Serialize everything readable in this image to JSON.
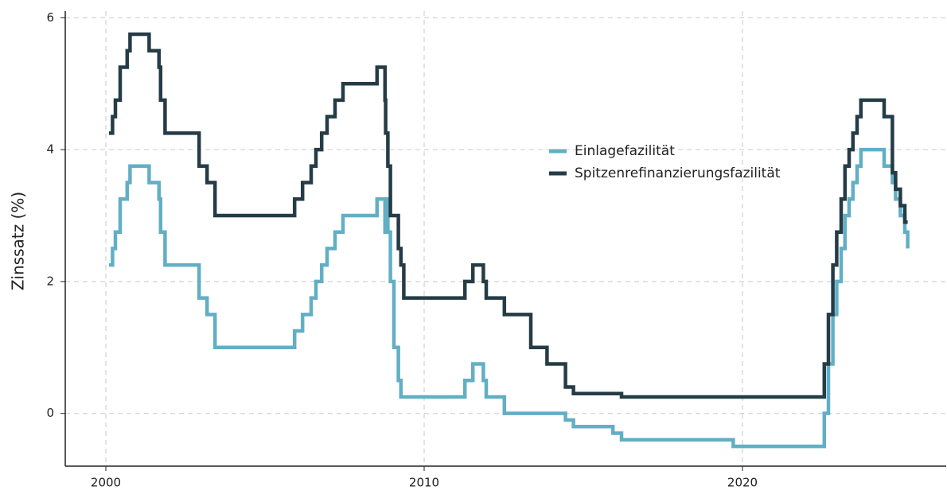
{
  "chart_data": {
    "type": "line",
    "step": true,
    "ylabel": "Zinssatz (%)",
    "x": [
      2000.1,
      2000.21,
      2000.3,
      2000.45,
      2000.67,
      2000.76,
      2001.36,
      2001.67,
      2001.72,
      2001.86,
      2002.93,
      2003.18,
      2003.43,
      2005.93,
      2006.18,
      2006.45,
      2006.6,
      2006.78,
      2006.95,
      2007.2,
      2007.45,
      2008.52,
      2008.77,
      2008.79,
      2008.86,
      2008.94,
      2009.05,
      2009.19,
      2009.27,
      2009.36,
      2011.28,
      2011.53,
      2011.86,
      2011.95,
      2012.52,
      2013.35,
      2013.86,
      2014.44,
      2014.69,
      2015.93,
      2016.2,
      2019.71,
      2022.57,
      2022.7,
      2022.84,
      2022.96,
      2023.1,
      2023.22,
      2023.35,
      2023.47,
      2023.6,
      2023.72,
      2024.45,
      2024.71,
      2024.81,
      2024.96,
      2025.1,
      2025.19
    ],
    "series": [
      {
        "name": "Einlagefazilität",
        "color": "#62afc5",
        "values": [
          2.25,
          2.5,
          2.75,
          3.25,
          3.5,
          3.75,
          3.5,
          3.25,
          2.75,
          2.25,
          1.75,
          1.5,
          1.0,
          1.25,
          1.5,
          1.75,
          2.0,
          2.25,
          2.5,
          2.75,
          3.0,
          3.25,
          2.75,
          3.25,
          2.75,
          2.0,
          1.0,
          0.5,
          0.25,
          0.25,
          0.5,
          0.75,
          0.5,
          0.25,
          0.0,
          0.0,
          0.0,
          -0.1,
          -0.2,
          -0.3,
          -0.4,
          -0.5,
          0.0,
          0.75,
          1.5,
          2.0,
          2.5,
          3.0,
          3.25,
          3.5,
          3.75,
          4.0,
          3.75,
          3.5,
          3.25,
          3.0,
          2.75,
          2.5
        ]
      },
      {
        "name": "Spitzenrefinanzierungsfazilität",
        "color": "#253c46",
        "values": [
          4.25,
          4.5,
          4.75,
          5.25,
          5.5,
          5.75,
          5.5,
          5.25,
          4.75,
          4.25,
          3.75,
          3.5,
          3.0,
          3.25,
          3.5,
          3.75,
          4.0,
          4.25,
          4.5,
          4.75,
          5.0,
          5.25,
          4.75,
          4.25,
          3.75,
          3.0,
          3.0,
          2.5,
          2.25,
          1.75,
          2.0,
          2.25,
          2.0,
          1.75,
          1.5,
          1.0,
          0.75,
          0.4,
          0.3,
          0.3,
          0.25,
          0.25,
          0.75,
          1.5,
          2.25,
          2.75,
          3.25,
          3.75,
          4.0,
          4.25,
          4.5,
          4.75,
          4.5,
          3.65,
          3.4,
          3.15,
          2.9,
          2.9
        ]
      }
    ],
    "xlim": [
      1998.725,
      2026.4
    ],
    "xticks": [
      2000,
      2010,
      2020
    ],
    "ylim": [
      -0.8,
      6.1
    ],
    "yticks": [
      0,
      2,
      4,
      6
    ],
    "grid": true,
    "legend": "center-right"
  }
}
